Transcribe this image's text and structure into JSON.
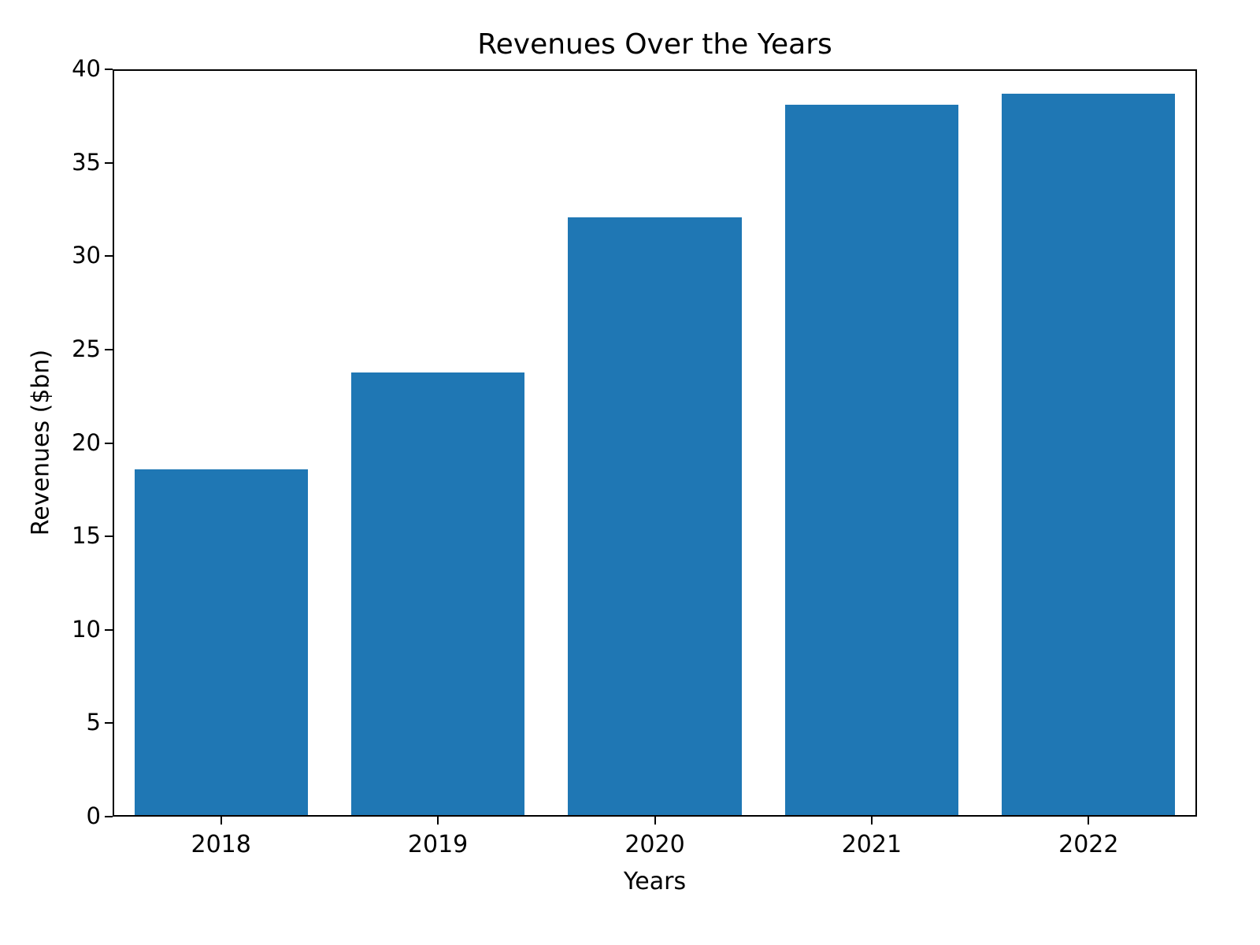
{
  "chart_data": {
    "type": "bar",
    "title": "Revenues Over the Years",
    "xlabel": "Years",
    "ylabel": "Revenues ($bn)",
    "categories": [
      "2018",
      "2019",
      "2020",
      "2021",
      "2022"
    ],
    "values": [
      18.5,
      23.7,
      32.0,
      38.0,
      38.6
    ],
    "ylim": [
      0,
      40
    ],
    "yticks": [
      0,
      5,
      10,
      15,
      20,
      25,
      30,
      35,
      40
    ],
    "bar_color": "#1f77b4",
    "bar_width_fraction": 0.8,
    "grid": false,
    "legend": "none"
  }
}
